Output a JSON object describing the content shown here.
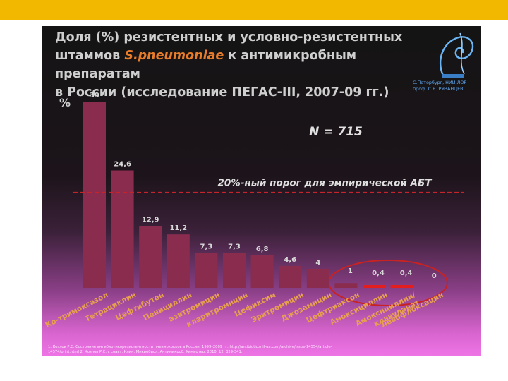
{
  "slide": {
    "title_line1": "Доля (%) резистентных и условно-резистентных",
    "title_line2_pre": "штаммов ",
    "title_species": "S.pneumoniae",
    "title_line2_post": " к антимикробным препаратам",
    "title_line3": "в России (исследование ПЕГАС-III, 2007-09 гг.)",
    "logo_caption_line1": "С.Петербург, НИИ ЛОР",
    "logo_caption_line2": "проф. С.В. РЯЗАНЦЕВ",
    "footnote_line1": "1.   Козлов Р.С. Состояние антибиотикорезистентности пневмококков в России: 1999–2009 гг. http://antibiotic.mif-ua.com/archive/issue-14554/article-",
    "footnote_line2": "14574/print.html 2. Козлов Р.С. с соавт. Клин. Микробиол. Антимикроб. Химиотер. 2010; 12: 329-341."
  },
  "chart_data": {
    "type": "bar",
    "ylabel": "%",
    "ylim": [
      0,
      39
    ],
    "categories": [
      "Ко-тримоксазол",
      "Тетрациклин",
      "Цефтибутен",
      "Пенициллин",
      "азитромицин",
      "кларитромицин",
      "Цефиксим",
      "Эритромицин",
      "Джозамицин",
      "Цефтриаксон",
      "Амоксициллин",
      "Амоксициллин/ клавуланат",
      "Левофлоксацин"
    ],
    "values": [
      39,
      24.6,
      12.9,
      11.2,
      7.3,
      7.3,
      6.8,
      4.6,
      4,
      1,
      0.4,
      0.4,
      0
    ],
    "value_labels": [
      "39",
      "24,6",
      "12,9",
      "11,2",
      "7,3",
      "7,3",
      "6,8",
      "4,6",
      "4",
      "1",
      "0,4",
      "0,4",
      "0"
    ],
    "annotation_n": "N = 715",
    "threshold_value": 20,
    "threshold_label": "20%-ный порог для эмпирической АБТ",
    "colors": {
      "bar": "#8a2c4e",
      "bar_low": "#e31e1e",
      "threshold": "#c4242a",
      "value_label": "#d8d8d8",
      "category_label": "#e8a050",
      "annotation": "#e0e0e0",
      "circle": "#c82222"
    }
  }
}
